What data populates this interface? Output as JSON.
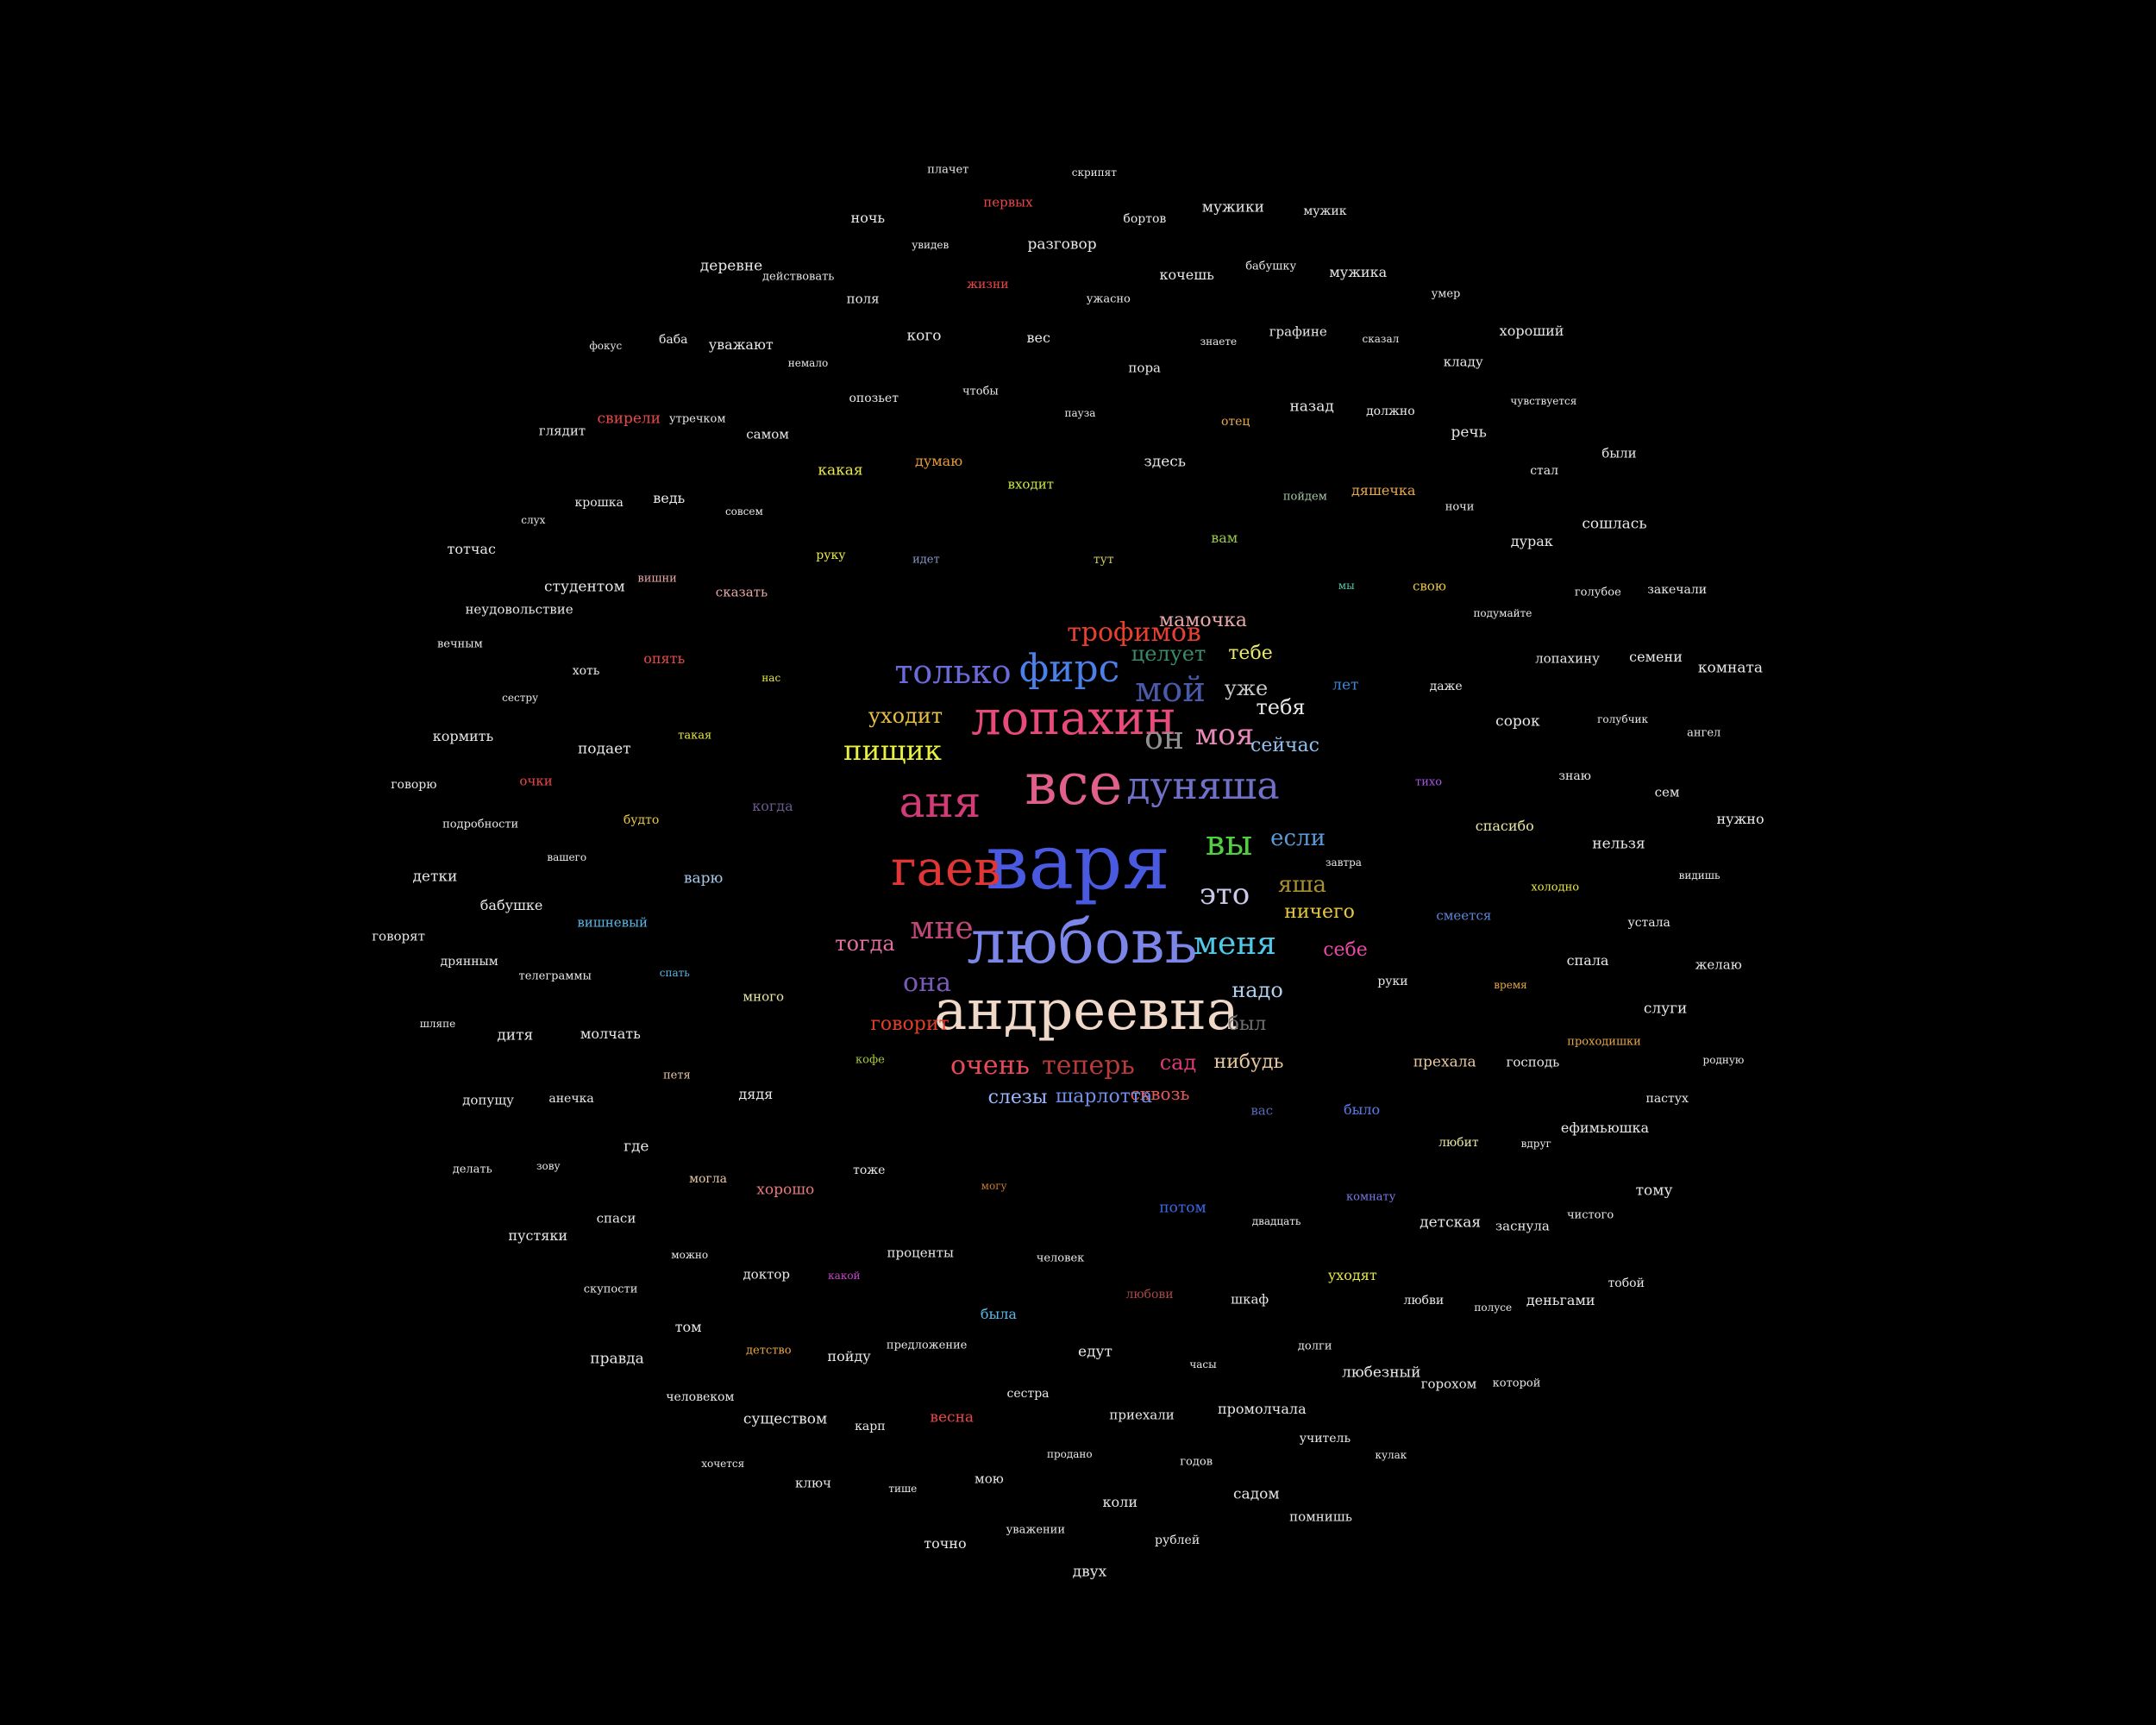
{
  "words": [
    {
      "text": "варя",
      "color": "#4a5ae0"
    },
    {
      "text": "любовь",
      "color": "#7b86e8"
    },
    {
      "text": "андреевна",
      "color": "#f0d8c8"
    },
    {
      "text": "все",
      "color": "#e0608a"
    },
    {
      "text": "гаев",
      "color": "#e23535"
    },
    {
      "text": "лопахин",
      "color": "#e84a7a"
    },
    {
      "text": "аня",
      "color": "#d23a78"
    },
    {
      "text": "дуняша",
      "color": "#7070c8"
    },
    {
      "text": "фирс",
      "color": "#4a80e8"
    },
    {
      "text": "только",
      "color": "#6a6ad8"
    },
    {
      "text": "мой",
      "color": "#4a5aa8"
    },
    {
      "text": "моя",
      "color": "#e888b8"
    },
    {
      "text": "он",
      "color": "#909090"
    },
    {
      "text": "вы",
      "color": "#50d040"
    },
    {
      "text": "мне",
      "color": "#c04878"
    },
    {
      "text": "меня",
      "color": "#50c8e8"
    },
    {
      "text": "это",
      "color": "#c8c8e8"
    },
    {
      "text": "пищик",
      "color": "#e8f040"
    },
    {
      "text": "трофимов",
      "color": "#e84030"
    },
    {
      "text": "очень",
      "color": "#e84a5a"
    },
    {
      "text": "теперь",
      "color": "#b83a3a"
    },
    {
      "text": "она",
      "color": "#7a5ab8"
    },
    {
      "text": "тогда",
      "color": "#e070a0"
    },
    {
      "text": "уходит",
      "color": "#e8c040"
    },
    {
      "text": "говорит",
      "color": "#e0402a"
    },
    {
      "text": "надо",
      "color": "#b0d0f0"
    },
    {
      "text": "был",
      "color": "#707070"
    },
    {
      "text": "сад",
      "color": "#e03a7a"
    },
    {
      "text": "нибудь",
      "color": "#e8c8a0"
    },
    {
      "text": "сквозь",
      "color": "#e8585a"
    },
    {
      "text": "слезы",
      "color": "#9ab8ff"
    },
    {
      "text": "шарлотта",
      "color": "#7090e8"
    },
    {
      "text": "если",
      "color": "#5a9ad8"
    },
    {
      "text": "яша",
      "color": "#a89030"
    },
    {
      "text": "ничего",
      "color": "#e8c840"
    },
    {
      "text": "себе",
      "color": "#e848a8"
    },
    {
      "text": "уже",
      "color": "#c8c8c8"
    },
    {
      "text": "тебя",
      "color": "#e8e8e8"
    },
    {
      "text": "сейчас",
      "color": "#90c0f0"
    },
    {
      "text": "целует",
      "color": "#3a8a6a"
    },
    {
      "text": "тебе",
      "color": "#e8e870"
    },
    {
      "text": "мамочка",
      "color": "#e8a8a8"
    },
    {
      "text": "завтра",
      "color": "#e8e8e8"
    },
    {
      "text": "кофе",
      "color": "#a8c840"
    },
    {
      "text": "тут",
      "color": "#c8c858"
    },
    {
      "text": "вас",
      "color": "#5a6ab8"
    },
    {
      "text": "когда",
      "color": "#6a5a8a"
    },
    {
      "text": "лет",
      "color": "#3a88d8"
    },
    {
      "text": "могу",
      "color": "#c87a30"
    },
    {
      "text": "идет",
      "color": "#8898c8"
    },
    {
      "text": "руки",
      "color": "#e8e8e8"
    },
    {
      "text": "много",
      "color": "#e8e8a8"
    },
    {
      "text": "вам",
      "color": "#98c848"
    },
    {
      "text": "потом",
      "color": "#3a6ae8"
    },
    {
      "text": "нас",
      "color": "#e8e840"
    },
    {
      "text": "тихо",
      "color": "#a858e8"
    },
    {
      "text": "тоже",
      "color": "#e8e8e8"
    },
    {
      "text": "входит",
      "color": "#c8e848"
    },
    {
      "text": "было",
      "color": "#5a7ae8"
    },
    {
      "text": "варю",
      "color": "#a8c8e8"
    },
    {
      "text": "мы",
      "color": "#58c8a8"
    },
    {
      "text": "человек",
      "color": "#e8e8e8"
    },
    {
      "text": "руку",
      "color": "#e8e848"
    },
    {
      "text": "смеется",
      "color": "#5a88d8"
    },
    {
      "text": "дядя",
      "color": "#e8e8e8"
    },
    {
      "text": "здесь",
      "color": "#e8e8e8"
    },
    {
      "text": "двадцать",
      "color": "#e8e8e8"
    },
    {
      "text": "такая",
      "color": "#e8e848"
    },
    {
      "text": "даже",
      "color": "#e8e8e8"
    },
    {
      "text": "проценты",
      "color": "#e8e8e8"
    },
    {
      "text": "думаю",
      "color": "#e89a3a"
    },
    {
      "text": "прехала",
      "color": "#e8c8a0"
    },
    {
      "text": "спать",
      "color": "#5ab8e8"
    },
    {
      "text": "пойдем",
      "color": "#a8c8a8"
    },
    {
      "text": "любови",
      "color": "#a84848"
    },
    {
      "text": "сказать",
      "color": "#e8a8a8"
    },
    {
      "text": "спасибо",
      "color": "#e8e8a8"
    },
    {
      "text": "хорошо",
      "color": "#e87a7a"
    },
    {
      "text": "пауза",
      "color": "#e8e8e8"
    },
    {
      "text": "комнату",
      "color": "#7a7ae8"
    },
    {
      "text": "будто",
      "color": "#e8c848"
    },
    {
      "text": "свою",
      "color": "#e8c848"
    },
    {
      "text": "была",
      "color": "#5ab8e8"
    },
    {
      "text": "какая",
      "color": "#e8e848"
    },
    {
      "text": "время",
      "color": "#e8a848"
    },
    {
      "text": "петя",
      "color": "#e8c8a8"
    },
    {
      "text": "отец",
      "color": "#e8a848"
    },
    {
      "text": "шкаф",
      "color": "#e8e8e8"
    },
    {
      "text": "опять",
      "color": "#e84848"
    },
    {
      "text": "сорок",
      "color": "#e8e8e8"
    },
    {
      "text": "какой",
      "color": "#c848c8"
    },
    {
      "text": "чтобы",
      "color": "#e8e8e8"
    },
    {
      "text": "любит",
      "color": "#e8e8a8"
    },
    {
      "text": "вишневый",
      "color": "#5ab8e8"
    },
    {
      "text": "дяшечка",
      "color": "#e8a848"
    },
    {
      "text": "едут",
      "color": "#e8e8e8"
    },
    {
      "text": "совсем",
      "color": "#e8e8e8"
    },
    {
      "text": "холодно",
      "color": "#e8e848"
    },
    {
      "text": "могла",
      "color": "#e8c8a8"
    },
    {
      "text": "пора",
      "color": "#e8e8e8"
    },
    {
      "text": "уходят",
      "color": "#e8e848"
    },
    {
      "text": "подает",
      "color": "#e8e8e8"
    },
    {
      "text": "подумайте",
      "color": "#e8e8e8"
    },
    {
      "text": "предложение",
      "color": "#e8e8e8"
    },
    {
      "text": "опозьет",
      "color": "#e8e8e8"
    },
    {
      "text": "господь",
      "color": "#e8e8e8"
    },
    {
      "text": "молчать",
      "color": "#e8e8e8"
    },
    {
      "text": "назад",
      "color": "#e8e8e8"
    },
    {
      "text": "часы",
      "color": "#e8e8e8"
    },
    {
      "text": "вишни",
      "color": "#e8a8a8"
    },
    {
      "text": "знаю",
      "color": "#e8e8e8"
    },
    {
      "text": "доктор",
      "color": "#e8e8e8"
    },
    {
      "text": "вес",
      "color": "#e8e8e8"
    },
    {
      "text": "детская",
      "color": "#e8e8e8"
    },
    {
      "text": "вашего",
      "color": "#e8e8e8"
    },
    {
      "text": "ночи",
      "color": "#e8e8e8"
    },
    {
      "text": "сестра",
      "color": "#e8e8e8"
    },
    {
      "text": "самом",
      "color": "#e8e8e8"
    },
    {
      "text": "спала",
      "color": "#e8e8e8"
    },
    {
      "text": "где",
      "color": "#e8e8e8"
    },
    {
      "text": "знаете",
      "color": "#e8e8e8"
    },
    {
      "text": "долги",
      "color": "#e8e8e8"
    },
    {
      "text": "хоть",
      "color": "#e8e8e8"
    },
    {
      "text": "лопахину",
      "color": "#e8e8e8"
    },
    {
      "text": "пойду",
      "color": "#e8e8e8"
    },
    {
      "text": "кого",
      "color": "#e8e8e8"
    },
    {
      "text": "вдруг",
      "color": "#e8e8e8"
    },
    {
      "text": "телеграммы",
      "color": "#e8e8e8"
    },
    {
      "text": "должно",
      "color": "#e8e8e8"
    },
    {
      "text": "приехали",
      "color": "#e8e8e8"
    },
    {
      "text": "ведь",
      "color": "#e8e8e8"
    },
    {
      "text": "нельзя",
      "color": "#e8e8e8"
    },
    {
      "text": "можно",
      "color": "#e8e8e8"
    },
    {
      "text": "ужасно",
      "color": "#e8e8e8"
    },
    {
      "text": "любви",
      "color": "#e8e8e8"
    },
    {
      "text": "очки",
      "color": "#e84848"
    },
    {
      "text": "дурак",
      "color": "#e8e8e8"
    },
    {
      "text": "весна",
      "color": "#e84848"
    },
    {
      "text": "немало",
      "color": "#e8e8e8"
    },
    {
      "text": "проходишки",
      "color": "#e8a848"
    },
    {
      "text": "анечка",
      "color": "#e8e8e8"
    },
    {
      "text": "графине",
      "color": "#e8e8e8"
    },
    {
      "text": "промолчала",
      "color": "#e8e8e8"
    },
    {
      "text": "студентом",
      "color": "#e8e8e8"
    },
    {
      "text": "голубчик",
      "color": "#e8e8e8"
    },
    {
      "text": "детство",
      "color": "#e8a848"
    },
    {
      "text": "жизни",
      "color": "#e84848"
    },
    {
      "text": "заснула",
      "color": "#e8e8e8"
    },
    {
      "text": "бабушке",
      "color": "#e8e8e8"
    },
    {
      "text": "речь",
      "color": "#e8e8e8"
    },
    {
      "text": "продано",
      "color": "#e8e8e8"
    },
    {
      "text": "утречком",
      "color": "#e8e8e8"
    },
    {
      "text": "устала",
      "color": "#e8e8e8"
    },
    {
      "text": "спаси",
      "color": "#e8e8e8"
    },
    {
      "text": "кочешь",
      "color": "#e8e8e8"
    },
    {
      "text": "любезный",
      "color": "#e8e8e8"
    },
    {
      "text": "сестру",
      "color": "#e8e8e8"
    },
    {
      "text": "голубое",
      "color": "#e8e8e8"
    },
    {
      "text": "карп",
      "color": "#e8e8e8"
    },
    {
      "text": "поля",
      "color": "#e8e8e8"
    },
    {
      "text": "ефимьюшка",
      "color": "#e8e8e8"
    },
    {
      "text": "дитя",
      "color": "#e8e8e8"
    },
    {
      "text": "сказал",
      "color": "#e8e8e8"
    },
    {
      "text": "годов",
      "color": "#e8e8e8"
    },
    {
      "text": "крошка",
      "color": "#e8e8e8"
    },
    {
      "text": "сем",
      "color": "#e8e8e8"
    },
    {
      "text": "том",
      "color": "#e8e8e8"
    },
    {
      "text": "разговор",
      "color": "#e8e8e8"
    },
    {
      "text": "полусе",
      "color": "#e8e8e8"
    },
    {
      "text": "подробности",
      "color": "#e8e8e8"
    },
    {
      "text": "стал",
      "color": "#e8e8e8"
    },
    {
      "text": "мою",
      "color": "#e8e8e8"
    },
    {
      "text": "уважают",
      "color": "#e8e8e8"
    },
    {
      "text": "слуги",
      "color": "#e8e8e8"
    },
    {
      "text": "зову",
      "color": "#e8e8e8"
    },
    {
      "text": "бабушку",
      "color": "#e8e8e8"
    },
    {
      "text": "учитель",
      "color": "#e8e8e8"
    },
    {
      "text": "неудовольствие",
      "color": "#e8e8e8"
    },
    {
      "text": "семени",
      "color": "#e8e8e8"
    },
    {
      "text": "существом",
      "color": "#e8e8e8"
    },
    {
      "text": "увидев",
      "color": "#e8e8e8"
    },
    {
      "text": "чистого",
      "color": "#e8e8e8"
    },
    {
      "text": "дрянным",
      "color": "#e8e8e8"
    },
    {
      "text": "кладу",
      "color": "#e8e8e8"
    },
    {
      "text": "коли",
      "color": "#e8e8e8"
    },
    {
      "text": "свирели",
      "color": "#e84848"
    },
    {
      "text": "видишь",
      "color": "#e8e8e8"
    },
    {
      "text": "скупости",
      "color": "#e8e8e8"
    },
    {
      "text": "бортов",
      "color": "#e8e8e8"
    },
    {
      "text": "горохом",
      "color": "#e8e8e8"
    },
    {
      "text": "кормить",
      "color": "#e8e8e8"
    },
    {
      "text": "сошлась",
      "color": "#e8e8e8"
    },
    {
      "text": "тише",
      "color": "#e8e8e8"
    },
    {
      "text": "действовать",
      "color": "#e8e8e8"
    },
    {
      "text": "пастух",
      "color": "#e8e8e8"
    },
    {
      "text": "допущу",
      "color": "#e8e8e8"
    },
    {
      "text": "мужика",
      "color": "#e8e8e8"
    },
    {
      "text": "садом",
      "color": "#e8e8e8"
    },
    {
      "text": "слух",
      "color": "#e8e8e8"
    },
    {
      "text": "ангел",
      "color": "#e8e8e8"
    },
    {
      "text": "человеком",
      "color": "#e8e8e8"
    },
    {
      "text": "первых",
      "color": "#e84848"
    },
    {
      "text": "деньгами",
      "color": "#e8e8e8"
    },
    {
      "text": "детки",
      "color": "#e8e8e8"
    },
    {
      "text": "чувствуется",
      "color": "#e8e8e8"
    },
    {
      "text": "уважении",
      "color": "#e8e8e8"
    },
    {
      "text": "баба",
      "color": "#e8e8e8"
    },
    {
      "text": "желаю",
      "color": "#e8e8e8"
    },
    {
      "text": "пустяки",
      "color": "#e8e8e8"
    },
    {
      "text": "мужики",
      "color": "#e8e8e8"
    },
    {
      "text": "кулак",
      "color": "#e8e8e8"
    },
    {
      "text": "вечным",
      "color": "#e8e8e8"
    },
    {
      "text": "закечали",
      "color": "#e8e8e8"
    },
    {
      "text": "ключ",
      "color": "#e8e8e8"
    },
    {
      "text": "ночь",
      "color": "#e8e8e8"
    },
    {
      "text": "тому",
      "color": "#e8e8e8"
    },
    {
      "text": "шляпе",
      "color": "#e8e8e8"
    },
    {
      "text": "умер",
      "color": "#e8e8e8"
    },
    {
      "text": "рублей",
      "color": "#e8e8e8"
    },
    {
      "text": "глядит",
      "color": "#e8e8e8"
    },
    {
      "text": "нужно",
      "color": "#e8e8e8"
    },
    {
      "text": "правда",
      "color": "#e8e8e8"
    },
    {
      "text": "скрипят",
      "color": "#e8e8e8"
    },
    {
      "text": "которой",
      "color": "#e8e8e8"
    },
    {
      "text": "говорю",
      "color": "#e8e8e8"
    },
    {
      "text": "были",
      "color": "#e8e8e8"
    },
    {
      "text": "точно",
      "color": "#e8e8e8"
    },
    {
      "text": "деревне",
      "color": "#e8e8e8"
    },
    {
      "text": "родную",
      "color": "#e8e8e8"
    },
    {
      "text": "делать",
      "color": "#e8e8e8"
    },
    {
      "text": "мужик",
      "color": "#e8e8e8"
    },
    {
      "text": "помнишь",
      "color": "#e8e8e8"
    },
    {
      "text": "тотчас",
      "color": "#e8e8e8"
    },
    {
      "text": "комната",
      "color": "#e8e8e8"
    },
    {
      "text": "хочется",
      "color": "#e8e8e8"
    },
    {
      "text": "плачет",
      "color": "#e8e8e8"
    },
    {
      "text": "тобой",
      "color": "#e8e8e8"
    },
    {
      "text": "говорят",
      "color": "#e8e8e8"
    },
    {
      "text": "хороший",
      "color": "#e8e8e8"
    },
    {
      "text": "двух",
      "color": "#e8e8e8"
    },
    {
      "text": "фокус",
      "color": "#e8e8e8"
    }
  ]
}
